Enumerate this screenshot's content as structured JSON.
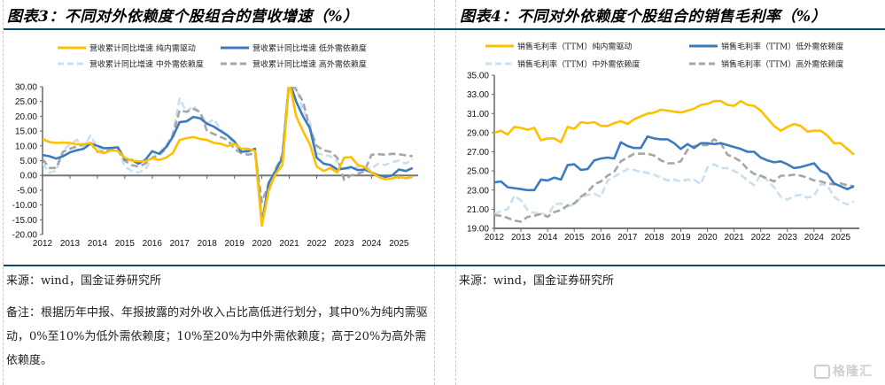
{
  "panels": [
    {
      "title": "图表3：不同对外依赖度个股组合的营收增速（%）",
      "source": "来源：wind，国金证券研究所",
      "note": "备注：根据历年中报、年报披露的对外收入占比高低进行划分，其中0%为纯内需驱动，0%至10%为低外需依赖度；10%至20%为中外需依赖度；高于20%为高外需依赖度。"
    },
    {
      "title": "图表4：不同对外依赖度个股组合的销售毛利率（%）",
      "source": "来源：wind，国金证券研究所"
    }
  ],
  "watermark": "格隆汇",
  "chart_data": [
    {
      "type": "line",
      "title": "不同对外依赖度个股组合的营收增速（%）",
      "xlabel": "",
      "ylabel": "",
      "ylim": [
        -20,
        30
      ],
      "yticks": [
        "30.00",
        "25.00",
        "20.00",
        "15.00",
        "10.00",
        "5.00",
        "0.00",
        "-5.00",
        "-10.00",
        "-15.00",
        "-20.00"
      ],
      "xticks": [
        "2012",
        "2013",
        "2014",
        "2015",
        "2016",
        "2017",
        "2018",
        "2019",
        "2020",
        "2021",
        "2022",
        "2023",
        "2024",
        "2025"
      ],
      "xrange": [
        2012,
        2025.7
      ],
      "legend_position": "top",
      "colors": {
        "pure": "#FFC000",
        "low": "#3C7BBF",
        "mid": "#C9DFF2",
        "high": "#A6A6A6"
      },
      "series": [
        {
          "name": "营收累计同比增速 纯内需驱动",
          "key": "pure",
          "style": "solid",
          "x": [
            2012,
            2012.25,
            2012.5,
            2012.75,
            2013,
            2013.25,
            2013.5,
            2013.75,
            2014,
            2014.25,
            2014.5,
            2014.75,
            2015,
            2015.25,
            2015.5,
            2015.75,
            2016,
            2016.25,
            2016.5,
            2016.75,
            2017,
            2017.25,
            2017.5,
            2017.75,
            2018,
            2018.25,
            2018.5,
            2018.75,
            2019,
            2019.25,
            2019.5,
            2019.75,
            2020,
            2020.25,
            2020.5,
            2020.75,
            2021,
            2021.25,
            2021.5,
            2021.75,
            2022,
            2022.25,
            2022.5,
            2022.75,
            2023,
            2023.25,
            2023.5,
            2023.75,
            2024,
            2024.25,
            2024.5,
            2024.75,
            2025,
            2025.25,
            2025.5
          ],
          "y": [
            12.3,
            11.3,
            11.0,
            11.1,
            11.0,
            10.5,
            10.5,
            11.0,
            8.2,
            7.5,
            8.5,
            8.3,
            6.0,
            5.0,
            4.8,
            4.8,
            5.8,
            5.2,
            6.0,
            7.5,
            12.0,
            12.6,
            13.0,
            12.3,
            12.0,
            11.0,
            10.7,
            9.9,
            10.7,
            9.0,
            9.0,
            8.3,
            -17.0,
            -5.0,
            0.5,
            3.5,
            32.0,
            20.0,
            15.0,
            10.5,
            3.0,
            1.5,
            2.5,
            1.0,
            6.0,
            6.2,
            3.5,
            2.8,
            1.0,
            -0.5,
            -1.3,
            -1.0,
            -0.5,
            -1.0,
            -0.5
          ]
        },
        {
          "name": "营收累计同比增速 低外需依赖度",
          "key": "low",
          "style": "solid",
          "x": [
            2012,
            2012.25,
            2012.5,
            2012.75,
            2013,
            2013.25,
            2013.5,
            2013.75,
            2014,
            2014.25,
            2014.5,
            2014.75,
            2015,
            2015.25,
            2015.5,
            2015.75,
            2016,
            2016.25,
            2016.5,
            2016.75,
            2017,
            2017.25,
            2017.5,
            2017.75,
            2018,
            2018.25,
            2018.5,
            2018.75,
            2019,
            2019.25,
            2019.5,
            2019.75,
            2020,
            2020.25,
            2020.5,
            2020.75,
            2021,
            2021.25,
            2021.5,
            2021.75,
            2022,
            2022.25,
            2022.5,
            2022.75,
            2023,
            2023.25,
            2023.5,
            2023.75,
            2024,
            2024.25,
            2024.5,
            2024.75,
            2025,
            2025.25,
            2025.5
          ],
          "y": [
            6.9,
            6.5,
            5.7,
            6.5,
            7.8,
            8.5,
            9.0,
            10.8,
            10.0,
            9.2,
            9.3,
            9.5,
            5.5,
            5.2,
            4.0,
            5.3,
            8.2,
            7.3,
            9.5,
            13.0,
            18.0,
            18.3,
            19.8,
            19.3,
            17.5,
            16.5,
            15.0,
            13.5,
            11.5,
            8.0,
            8.2,
            9.0,
            -16.5,
            -2.5,
            1.5,
            6.0,
            32.0,
            25.0,
            20.0,
            16.0,
            6.0,
            4.0,
            3.5,
            2.0,
            2.3,
            2.8,
            1.8,
            2.0,
            1.0,
            0.0,
            -0.5,
            0.0,
            2.0,
            1.5,
            2.5
          ]
        },
        {
          "name": "营收累计同比增速 中外需依赖度",
          "key": "mid",
          "style": "dashed",
          "x": [
            2012,
            2012.25,
            2012.5,
            2012.75,
            2013,
            2013.25,
            2013.5,
            2013.75,
            2014,
            2014.25,
            2014.5,
            2014.75,
            2015,
            2015.25,
            2015.5,
            2015.75,
            2016,
            2016.25,
            2016.5,
            2016.75,
            2017,
            2017.25,
            2017.5,
            2017.75,
            2018,
            2018.25,
            2018.5,
            2018.75,
            2019,
            2019.25,
            2019.5,
            2019.75,
            2020,
            2020.25,
            2020.5,
            2020.75,
            2021,
            2021.25,
            2021.5,
            2021.75,
            2022,
            2022.25,
            2022.5,
            2022.75,
            2023,
            2023.25,
            2023.5,
            2023.75,
            2024,
            2024.25,
            2024.5,
            2024.75,
            2025,
            2025.25,
            2025.5
          ],
          "y": [
            4.0,
            1.0,
            1.5,
            8.5,
            10.5,
            12.0,
            9.5,
            13.5,
            9.5,
            8.0,
            8.5,
            9.0,
            3.0,
            1.5,
            1.0,
            2.0,
            6.0,
            7.5,
            10.0,
            14.0,
            26.0,
            21.5,
            23.5,
            21.0,
            17.5,
            19.0,
            15.5,
            13.5,
            10.5,
            8.5,
            8.0,
            8.8,
            -14.0,
            -6.0,
            2.5,
            6.0,
            32.0,
            30.0,
            22.0,
            18.0,
            7.5,
            7.0,
            6.5,
            4.5,
            2.5,
            2.0,
            3.0,
            2.5,
            2.3,
            4.0,
            3.5,
            4.5,
            5.0,
            4.0,
            5.5
          ]
        },
        {
          "name": "营收累计同比增速 高外需依赖度",
          "key": "high",
          "style": "dashed",
          "x": [
            2012,
            2012.25,
            2012.5,
            2012.75,
            2013,
            2013.25,
            2013.5,
            2013.75,
            2014,
            2014.25,
            2014.5,
            2014.75,
            2015,
            2015.25,
            2015.5,
            2015.75,
            2016,
            2016.25,
            2016.5,
            2016.75,
            2017,
            2017.25,
            2017.5,
            2017.75,
            2018,
            2018.25,
            2018.5,
            2018.75,
            2019,
            2019.25,
            2019.5,
            2019.75,
            2020,
            2020.25,
            2020.5,
            2020.75,
            2021,
            2021.25,
            2021.5,
            2021.75,
            2022,
            2022.25,
            2022.5,
            2022.75,
            2023,
            2023.25,
            2023.5,
            2023.75,
            2024,
            2024.25,
            2024.5,
            2024.75,
            2025,
            2025.25,
            2025.5
          ],
          "y": [
            5.5,
            2.5,
            2.5,
            8.0,
            9.0,
            9.8,
            10.5,
            11.0,
            8.0,
            8.0,
            8.8,
            8.5,
            5.0,
            3.5,
            3.0,
            4.0,
            6.0,
            6.8,
            9.0,
            13.5,
            22.0,
            21.5,
            22.5,
            21.5,
            15.0,
            14.0,
            13.0,
            12.0,
            9.0,
            7.5,
            7.0,
            7.5,
            -9.0,
            -3.0,
            2.0,
            7.0,
            32.0,
            29.0,
            25.0,
            16.0,
            10.0,
            8.5,
            8.0,
            6.0,
            -1.5,
            0.0,
            0.5,
            1.5,
            7.0,
            7.2,
            7.0,
            7.3,
            7.2,
            6.8,
            6.5
          ]
        }
      ]
    },
    {
      "type": "line",
      "title": "不同对外依赖度个股组合的销售毛利率（%）",
      "xlabel": "",
      "ylabel": "",
      "ylim": [
        19,
        35
      ],
      "yticks": [
        "35.00",
        "33.00",
        "31.00",
        "29.00",
        "27.00",
        "25.00",
        "23.00",
        "21.00",
        "19.00"
      ],
      "xticks": [
        "2012",
        "2013",
        "2014",
        "2015",
        "2016",
        "2017",
        "2018",
        "2019",
        "2020",
        "2021",
        "2022",
        "2023",
        "2024",
        "2025"
      ],
      "xrange": [
        2012,
        2025.7
      ],
      "legend_position": "top",
      "colors": {
        "pure": "#FFC000",
        "low": "#3C7BBF",
        "mid": "#C9DFF2",
        "high": "#A6A6A6"
      },
      "series": [
        {
          "name": "销售毛利率（TTM）纯内需驱动",
          "key": "pure",
          "style": "solid",
          "x": [
            2012,
            2012.25,
            2012.5,
            2012.75,
            2013,
            2013.25,
            2013.5,
            2013.75,
            2014,
            2014.25,
            2014.5,
            2014.75,
            2015,
            2015.25,
            2015.5,
            2015.75,
            2016,
            2016.25,
            2016.5,
            2016.75,
            2017,
            2017.25,
            2017.5,
            2017.75,
            2018,
            2018.25,
            2018.5,
            2018.75,
            2019,
            2019.25,
            2019.5,
            2019.75,
            2020,
            2020.25,
            2020.5,
            2020.75,
            2021,
            2021.25,
            2021.5,
            2021.75,
            2022,
            2022.25,
            2022.5,
            2022.75,
            2023,
            2023.25,
            2023.5,
            2023.75,
            2024,
            2024.25,
            2024.5,
            2024.75,
            2025,
            2025.25,
            2025.5
          ],
          "y": [
            29.0,
            29.2,
            28.8,
            29.6,
            29.5,
            29.3,
            29.5,
            28.2,
            28.4,
            28.4,
            28.0,
            29.6,
            29.4,
            30.1,
            30.0,
            30.1,
            29.7,
            29.7,
            30.0,
            30.2,
            29.9,
            30.4,
            30.7,
            31.0,
            31.1,
            31.4,
            31.3,
            31.2,
            31.1,
            31.3,
            31.5,
            31.9,
            32.0,
            32.3,
            32.3,
            31.9,
            31.8,
            32.3,
            31.9,
            31.8,
            31.3,
            30.5,
            29.7,
            29.2,
            29.6,
            29.9,
            29.7,
            29.1,
            29.2,
            29.2,
            28.7,
            27.9,
            27.9,
            27.3,
            26.7
          ]
        },
        {
          "name": "销售毛利率（TTM）低外需依赖度",
          "key": "low",
          "style": "solid",
          "x": [
            2012,
            2012.25,
            2012.5,
            2012.75,
            2013,
            2013.25,
            2013.5,
            2013.75,
            2014,
            2014.25,
            2014.5,
            2014.75,
            2015,
            2015.25,
            2015.5,
            2015.75,
            2016,
            2016.25,
            2016.5,
            2016.75,
            2017,
            2017.25,
            2017.5,
            2017.75,
            2018,
            2018.25,
            2018.5,
            2018.75,
            2019,
            2019.25,
            2019.5,
            2019.75,
            2020,
            2020.25,
            2020.5,
            2020.75,
            2021,
            2021.25,
            2021.5,
            2021.75,
            2022,
            2022.25,
            2022.5,
            2022.75,
            2023,
            2023.25,
            2023.5,
            2023.75,
            2024,
            2024.25,
            2024.5,
            2024.75,
            2025,
            2025.25,
            2025.5
          ],
          "y": [
            23.8,
            23.9,
            23.3,
            23.2,
            23.1,
            23.0,
            23.0,
            24.1,
            24.0,
            24.3,
            24.1,
            25.6,
            25.7,
            25.1,
            25.2,
            26.1,
            26.3,
            26.4,
            26.3,
            28.0,
            27.6,
            27.4,
            27.4,
            28.6,
            28.4,
            28.3,
            28.3,
            27.9,
            27.3,
            27.8,
            27.4,
            27.9,
            27.9,
            27.8,
            27.9,
            27.7,
            27.5,
            27.3,
            27.0,
            27.0,
            26.4,
            26.1,
            25.9,
            26.0,
            25.7,
            25.3,
            25.4,
            25.6,
            25.8,
            25.0,
            24.7,
            23.7,
            23.4,
            23.1,
            23.4
          ]
        },
        {
          "name": "销售毛利率（TTM）中外需依赖度",
          "key": "mid",
          "style": "dashed",
          "x": [
            2012,
            2012.25,
            2012.5,
            2012.75,
            2013,
            2013.25,
            2013.5,
            2013.75,
            2014,
            2014.25,
            2014.5,
            2014.75,
            2015,
            2015.25,
            2015.5,
            2015.75,
            2016,
            2016.25,
            2016.5,
            2016.75,
            2017,
            2017.25,
            2017.5,
            2017.75,
            2018,
            2018.25,
            2018.5,
            2018.75,
            2019,
            2019.25,
            2019.5,
            2019.75,
            2020,
            2020.25,
            2020.5,
            2020.75,
            2021,
            2021.25,
            2021.5,
            2021.75,
            2022,
            2022.25,
            2022.5,
            2022.75,
            2023,
            2023.25,
            2023.5,
            2023.75,
            2024,
            2024.25,
            2024.5,
            2024.75,
            2025,
            2025.25,
            2025.5
          ],
          "y": [
            20.5,
            20.8,
            21.0,
            22.4,
            21.9,
            20.9,
            20.6,
            20.6,
            20.3,
            21.5,
            21.6,
            21.3,
            21.5,
            22.2,
            22.5,
            22.6,
            22.3,
            24.0,
            24.4,
            24.8,
            25.2,
            25.1,
            24.9,
            24.8,
            24.6,
            24.3,
            24.0,
            24.1,
            23.9,
            24.1,
            24.1,
            23.6,
            25.4,
            25.7,
            25.3,
            25.3,
            25.0,
            24.6,
            24.0,
            23.5,
            24.6,
            24.0,
            23.3,
            22.3,
            22.0,
            22.4,
            22.5,
            22.2,
            22.4,
            23.6,
            23.5,
            22.3,
            21.8,
            21.5,
            21.8
          ]
        },
        {
          "name": "销售毛利率（TTM）高外需依赖度",
          "key": "high",
          "style": "dashed",
          "x": [
            2012,
            2012.25,
            2012.5,
            2012.75,
            2013,
            2013.25,
            2013.5,
            2013.75,
            2014,
            2014.25,
            2014.5,
            2014.75,
            2015,
            2015.25,
            2015.5,
            2015.75,
            2016,
            2016.25,
            2016.5,
            2016.75,
            2017,
            2017.25,
            2017.5,
            2017.75,
            2018,
            2018.25,
            2018.5,
            2018.75,
            2019,
            2019.25,
            2019.5,
            2019.75,
            2020,
            2020.25,
            2020.5,
            2020.75,
            2021,
            2021.25,
            2021.5,
            2021.75,
            2022,
            2022.25,
            2022.5,
            2022.75,
            2023,
            2023.25,
            2023.5,
            2023.75,
            2024,
            2024.25,
            2024.5,
            2024.75,
            2025,
            2025.25,
            2025.5
          ],
          "y": [
            20.4,
            20.3,
            20.1,
            19.8,
            19.7,
            20.2,
            20.3,
            20.5,
            20.2,
            20.7,
            20.9,
            21.4,
            21.6,
            22.3,
            22.8,
            23.6,
            23.9,
            24.5,
            24.9,
            26.0,
            26.4,
            26.8,
            26.8,
            26.8,
            26.6,
            26.1,
            25.8,
            25.8,
            26.0,
            27.2,
            27.6,
            27.7,
            27.7,
            28.3,
            27.9,
            26.7,
            26.4,
            26.0,
            25.2,
            24.7,
            24.5,
            24.2,
            23.9,
            24.5,
            24.5,
            24.6,
            24.5,
            24.3,
            24.0,
            23.9,
            23.7,
            23.6,
            23.7,
            23.5,
            23.4
          ]
        }
      ]
    }
  ]
}
